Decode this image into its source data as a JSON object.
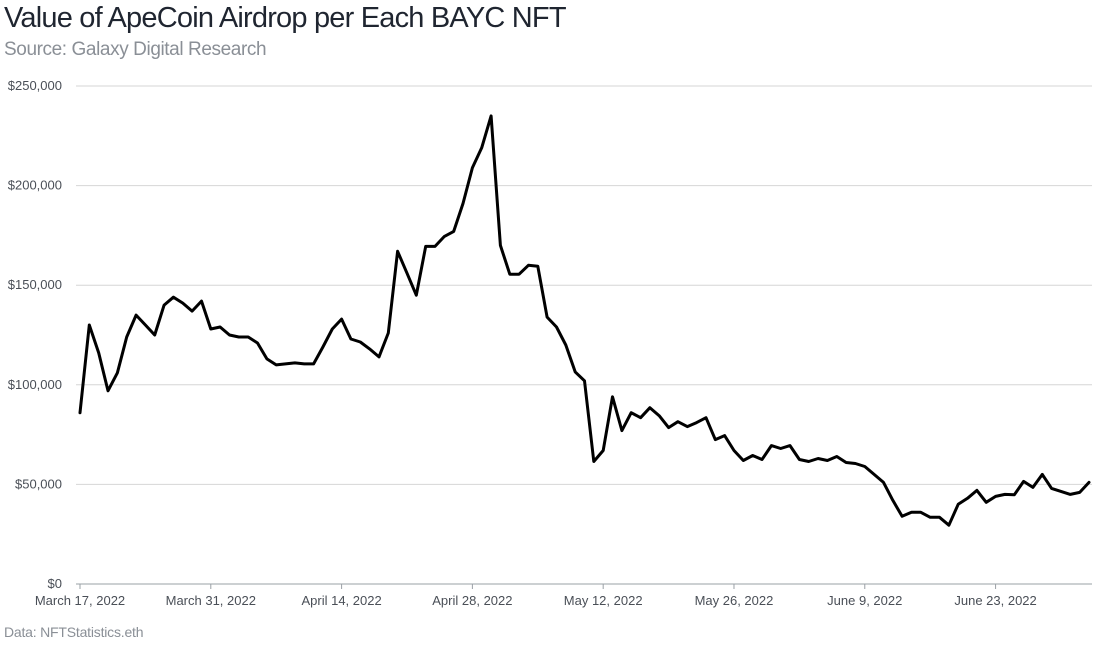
{
  "header": {
    "title": "Value of ApeCoin Airdrop per Each BAYC NFT",
    "subtitle": "Source: Galaxy Digital Research"
  },
  "footer": {
    "note": "Data: NFTStatistics.eth"
  },
  "colors": {
    "line": "#000000",
    "grid": "#d6d6d6",
    "axis": "#9aa0a6"
  },
  "chart_data": {
    "type": "line",
    "title": "Value of ApeCoin Airdrop per Each BAYC NFT",
    "subtitle": "Source: Galaxy Digital Research",
    "xlabel": "",
    "ylabel": "",
    "ylim": [
      0,
      250000
    ],
    "grid": true,
    "legend": "none",
    "y_ticks": [
      0,
      50000,
      100000,
      150000,
      200000,
      250000
    ],
    "y_tick_labels": [
      "$0",
      "$50,000",
      "$100,000",
      "$150,000",
      "$200,000",
      "$250,000"
    ],
    "x_ticks": [
      "2022-03-17",
      "2022-03-31",
      "2022-04-14",
      "2022-04-28",
      "2022-05-12",
      "2022-05-26",
      "2022-06-09",
      "2022-06-23"
    ],
    "x_tick_labels": [
      "March 17, 2022",
      "March 31, 2022",
      "April 14, 2022",
      "April 28, 2022",
      "May 12, 2022",
      "May 26, 2022",
      "June 9, 2022",
      "June 23, 2022"
    ],
    "series": [
      {
        "x": [
          "2022-03-17",
          "2022-03-18",
          "2022-03-19",
          "2022-03-20",
          "2022-03-21",
          "2022-03-22",
          "2022-03-23",
          "2022-03-24",
          "2022-03-25",
          "2022-03-26",
          "2022-03-27",
          "2022-03-28",
          "2022-03-29",
          "2022-03-30",
          "2022-03-31",
          "2022-04-01",
          "2022-04-02",
          "2022-04-03",
          "2022-04-04",
          "2022-04-05",
          "2022-04-06",
          "2022-04-07",
          "2022-04-08",
          "2022-04-09",
          "2022-04-10",
          "2022-04-11",
          "2022-04-12",
          "2022-04-13",
          "2022-04-14",
          "2022-04-15",
          "2022-04-16",
          "2022-04-17",
          "2022-04-18",
          "2022-04-19",
          "2022-04-20",
          "2022-04-21",
          "2022-04-22",
          "2022-04-23",
          "2022-04-24",
          "2022-04-25",
          "2022-04-26",
          "2022-04-27",
          "2022-04-28",
          "2022-04-29",
          "2022-04-30",
          "2022-05-01",
          "2022-05-02",
          "2022-05-03",
          "2022-05-04",
          "2022-05-05",
          "2022-05-06",
          "2022-05-07",
          "2022-05-08",
          "2022-05-09",
          "2022-05-10",
          "2022-05-11",
          "2022-05-12",
          "2022-05-13",
          "2022-05-14",
          "2022-05-15",
          "2022-05-16",
          "2022-05-17",
          "2022-05-18",
          "2022-05-19",
          "2022-05-20",
          "2022-05-21",
          "2022-05-22",
          "2022-05-23",
          "2022-05-24",
          "2022-05-25",
          "2022-05-26",
          "2022-05-27",
          "2022-05-28",
          "2022-05-29",
          "2022-05-30",
          "2022-05-31",
          "2022-06-01",
          "2022-06-02",
          "2022-06-03",
          "2022-06-04",
          "2022-06-05",
          "2022-06-06",
          "2022-06-07",
          "2022-06-08",
          "2022-06-09",
          "2022-06-10",
          "2022-06-11",
          "2022-06-12",
          "2022-06-13",
          "2022-06-14",
          "2022-06-15",
          "2022-06-16",
          "2022-06-17",
          "2022-06-18",
          "2022-06-19",
          "2022-06-20",
          "2022-06-21",
          "2022-06-22",
          "2022-06-23",
          "2022-06-24",
          "2022-06-25",
          "2022-06-26",
          "2022-06-27",
          "2022-06-28",
          "2022-06-29",
          "2022-06-30",
          "2022-07-01",
          "2022-07-02",
          "2022-07-03"
        ],
        "values": [
          86000,
          130000,
          116000,
          97000,
          106000,
          124000,
          135000,
          130000,
          125000,
          140000,
          144000,
          141000,
          137000,
          142000,
          128000,
          129000,
          125000,
          124000,
          124000,
          121000,
          113000,
          110000,
          110500,
          111000,
          110500,
          110500,
          119000,
          128000,
          133000,
          123000,
          121500,
          118000,
          114000,
          126000,
          167000,
          156000,
          145000,
          169500,
          169500,
          174500,
          177000,
          191000,
          209000,
          219000,
          235000,
          170000,
          155500,
          155500,
          160000,
          159500,
          134000,
          129000,
          120000,
          106500,
          102000,
          61500,
          67000,
          94000,
          77000,
          86000,
          83500,
          88500,
          84500,
          78500,
          81500,
          79000,
          81000,
          83500,
          72500,
          74500,
          67000,
          62000,
          64500,
          62500,
          69500,
          68000,
          69500,
          62500,
          61500,
          63000,
          62000,
          64000,
          61000,
          60500,
          59000,
          55000,
          51000,
          42000,
          34000,
          36000,
          36000,
          33500,
          33500,
          29500,
          40000,
          43000,
          47000,
          41000,
          44000,
          45000,
          44800,
          51500,
          48500,
          55000,
          48000,
          46500,
          45000,
          46000,
          51000
        ]
      }
    ]
  }
}
